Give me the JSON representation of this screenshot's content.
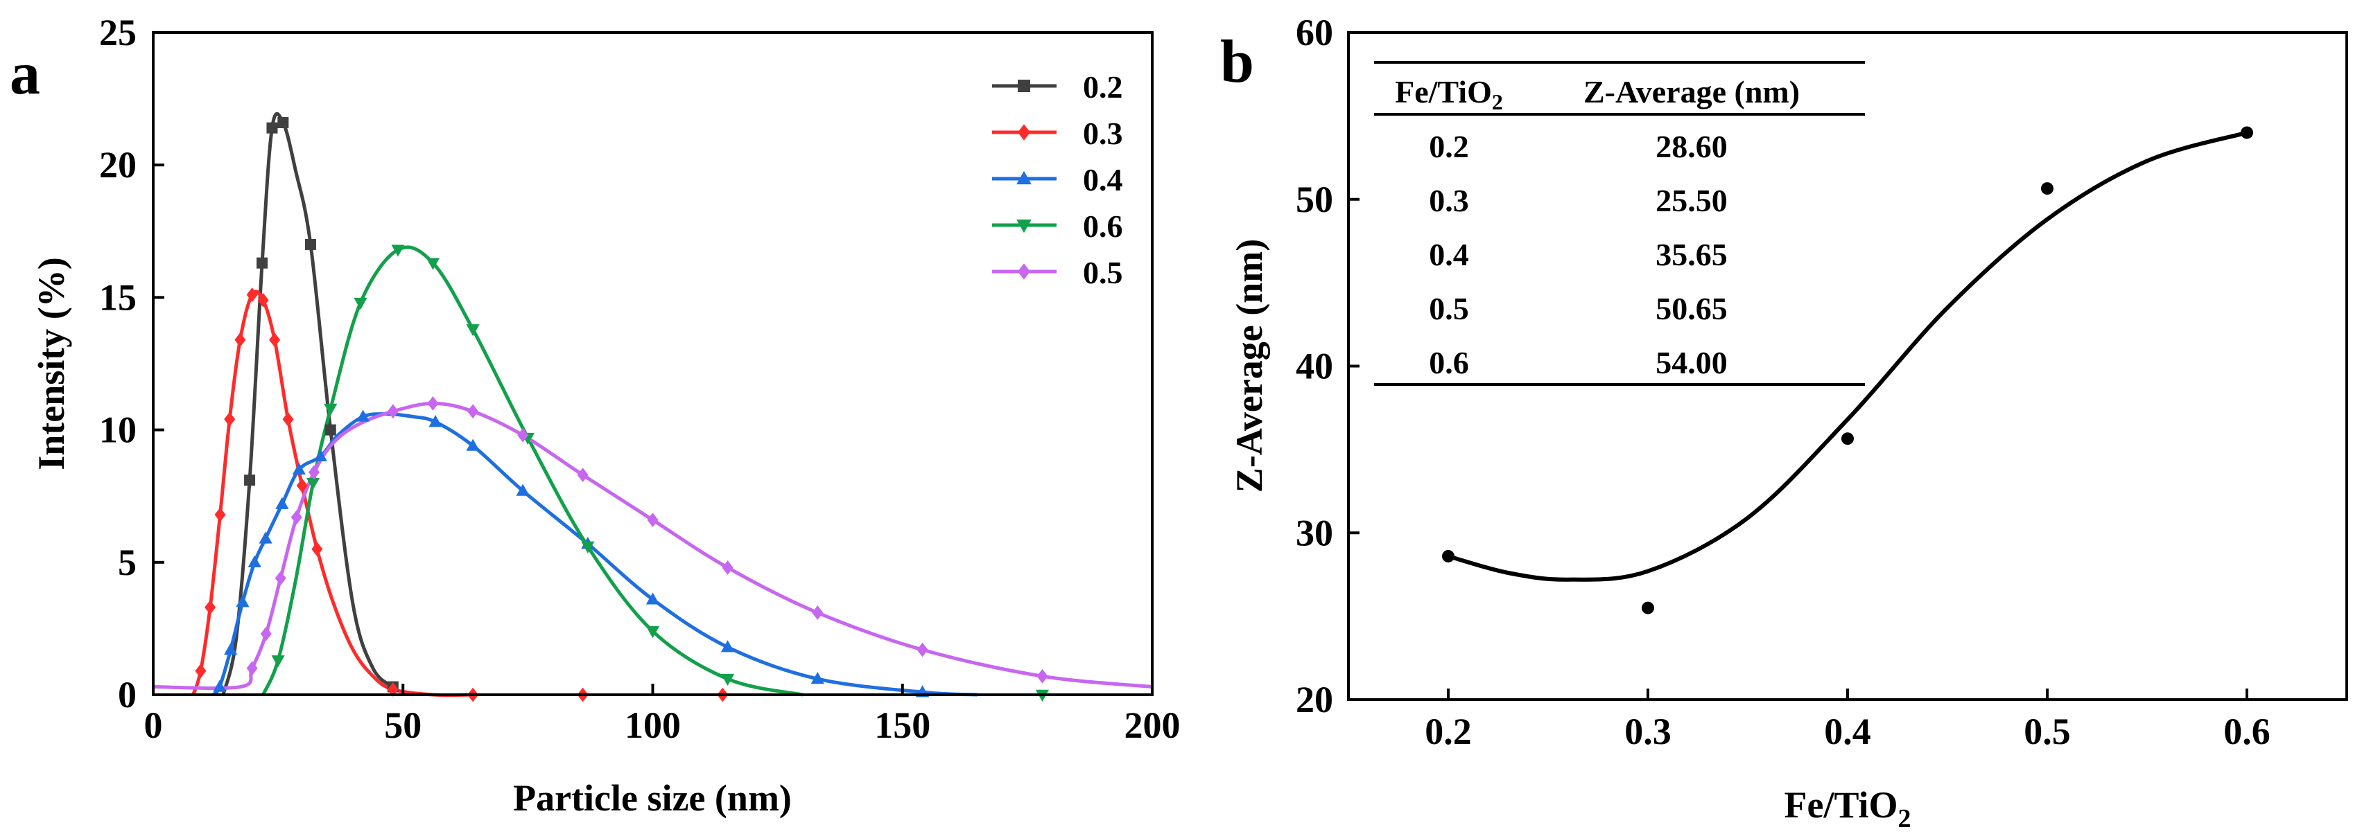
{
  "panel_a_letter": "a",
  "panel_b_letter": "b",
  "chart_data": [
    {
      "type": "line",
      "panel": "a",
      "title": "",
      "xlabel": "Particle size (nm)",
      "ylabel": "Intensity (%)",
      "xlim": [
        0,
        200
      ],
      "ylim": [
        0,
        25
      ],
      "x_ticks": [
        0,
        50,
        100,
        150,
        200
      ],
      "y_ticks": [
        0,
        5,
        10,
        15,
        20,
        25
      ],
      "grid": false,
      "legend_position": "top-right",
      "series": [
        {
          "name": "0.2",
          "color": "#404040",
          "marker": "square",
          "points": [
            [
              14,
              0
            ],
            [
              16.6,
              2.1
            ],
            [
              19.3,
              8.1
            ],
            [
              21.8,
              16.3
            ],
            [
              23.8,
              21.4
            ],
            [
              26,
              21.6
            ],
            [
              28.5,
              19.8
            ],
            [
              31.5,
              17.0
            ],
            [
              35.5,
              10.0
            ],
            [
              40,
              3.4
            ],
            [
              44,
              1.0
            ],
            [
              48,
              0.3
            ]
          ],
          "markers": [
            [
              19.3,
              8.1
            ],
            [
              21.8,
              16.3
            ],
            [
              23.8,
              21.4
            ],
            [
              26,
              21.6
            ],
            [
              31.5,
              17.0
            ],
            [
              35.5,
              10.0
            ],
            [
              48,
              0.3
            ]
          ]
        },
        {
          "name": "0.3",
          "color": "#ff2b2b",
          "marker": "diamond",
          "points": [
            [
              8,
              0
            ],
            [
              9.5,
              0.9
            ],
            [
              11.4,
              3.3
            ],
            [
              13.4,
              6.8
            ],
            [
              15.3,
              10.4
            ],
            [
              17.4,
              13.4
            ],
            [
              19.8,
              15.1
            ],
            [
              22,
              14.9
            ],
            [
              24.3,
              13.4
            ],
            [
              27,
              10.4
            ],
            [
              29.8,
              7.9
            ],
            [
              32.8,
              5.5
            ],
            [
              36,
              3.5
            ],
            [
              40,
              1.7
            ],
            [
              44,
              0.7
            ],
            [
              48,
              0.2
            ],
            [
              56,
              0
            ],
            [
              64,
              0
            ]
          ],
          "markers": [
            [
              9.5,
              0.9
            ],
            [
              11.4,
              3.3
            ],
            [
              13.4,
              6.8
            ],
            [
              15.3,
              10.4
            ],
            [
              17.4,
              13.4
            ],
            [
              19.8,
              15.1
            ],
            [
              22,
              14.9
            ],
            [
              24.3,
              13.4
            ],
            [
              27,
              10.4
            ],
            [
              29.8,
              7.9
            ],
            [
              32.8,
              5.5
            ],
            [
              48,
              0.2
            ],
            [
              64,
              0
            ],
            [
              86,
              0
            ],
            [
              114,
              0
            ]
          ]
        },
        {
          "name": "0.4",
          "color": "#1e6fe0",
          "marker": "triangle-up",
          "points": [
            [
              12,
              0
            ],
            [
              13.3,
              0.3
            ],
            [
              15.5,
              1.7
            ],
            [
              17.9,
              3.5
            ],
            [
              20.3,
              5.0
            ],
            [
              22.5,
              5.9
            ],
            [
              25.8,
              7.2
            ],
            [
              29.2,
              8.5
            ],
            [
              33.5,
              9.0
            ],
            [
              37,
              9.8
            ],
            [
              42,
              10.5
            ],
            [
              47,
              10.6
            ],
            [
              52,
              10.5
            ],
            [
              56.5,
              10.3
            ],
            [
              64,
              9.4
            ],
            [
              74,
              7.7
            ],
            [
              87,
              5.7
            ],
            [
              100,
              3.6
            ],
            [
              115,
              1.8
            ],
            [
              133,
              0.6
            ],
            [
              154,
              0.1
            ],
            [
              165,
              0
            ]
          ],
          "markers": [
            [
              13.3,
              0.3
            ],
            [
              15.5,
              1.7
            ],
            [
              17.9,
              3.5
            ],
            [
              20.3,
              5.0
            ],
            [
              22.5,
              5.9
            ],
            [
              25.8,
              7.2
            ],
            [
              29.2,
              8.5
            ],
            [
              33.5,
              9.0
            ],
            [
              42,
              10.5
            ],
            [
              56.5,
              10.3
            ],
            [
              64,
              9.4
            ],
            [
              74,
              7.7
            ],
            [
              87,
              5.7
            ],
            [
              100,
              3.6
            ],
            [
              115,
              1.8
            ],
            [
              133,
              0.6
            ],
            [
              154,
              0.1
            ]
          ]
        },
        {
          "name": "0.6",
          "color": "#12a04b",
          "marker": "triangle-down",
          "points": [
            [
              22,
              0
            ],
            [
              25,
              1.3
            ],
            [
              28.5,
              4.3
            ],
            [
              32,
              8.0
            ],
            [
              35.5,
              10.8
            ],
            [
              41.5,
              14.8
            ],
            [
              49,
              16.8
            ],
            [
              56,
              16.3
            ],
            [
              64,
              13.8
            ],
            [
              75,
              9.7
            ],
            [
              87,
              5.6
            ],
            [
              100,
              2.4
            ],
            [
              115,
              0.6
            ],
            [
              130,
              0
            ]
          ],
          "markers": [
            [
              25,
              1.3
            ],
            [
              32,
              8.0
            ],
            [
              35.5,
              10.8
            ],
            [
              41.5,
              14.8
            ],
            [
              49,
              16.8
            ],
            [
              56,
              16.3
            ],
            [
              64,
              13.8
            ],
            [
              75,
              9.7
            ],
            [
              87,
              5.6
            ],
            [
              100,
              2.4
            ],
            [
              115,
              0.6
            ],
            [
              178,
              0
            ]
          ]
        },
        {
          "name": "0.5",
          "color": "#c766f0",
          "marker": "diamond",
          "points": [
            [
              0,
              0.3
            ],
            [
              17.5,
              0.3
            ],
            [
              19.8,
              1.0
            ],
            [
              22.6,
              2.3
            ],
            [
              25.5,
              4.4
            ],
            [
              28.7,
              6.7
            ],
            [
              32.2,
              8.4
            ],
            [
              36,
              9.5
            ],
            [
              41,
              10.2
            ],
            [
              48,
              10.7
            ],
            [
              56,
              11.0
            ],
            [
              64,
              10.7
            ],
            [
              74,
              9.8
            ],
            [
              86,
              8.3
            ],
            [
              100,
              6.6
            ],
            [
              115,
              4.8
            ],
            [
              133,
              3.1
            ],
            [
              154,
              1.7
            ],
            [
              178,
              0.7
            ],
            [
              200,
              0.3
            ]
          ],
          "markers": [
            [
              19.8,
              1.0
            ],
            [
              22.6,
              2.3
            ],
            [
              25.5,
              4.4
            ],
            [
              28.7,
              6.7
            ],
            [
              32.2,
              8.4
            ],
            [
              48,
              10.7
            ],
            [
              56,
              11.0
            ],
            [
              64,
              10.7
            ],
            [
              74,
              9.8
            ],
            [
              86,
              8.3
            ],
            [
              100,
              6.6
            ],
            [
              115,
              4.8
            ],
            [
              133,
              3.1
            ],
            [
              154,
              1.7
            ],
            [
              178,
              0.7
            ]
          ]
        }
      ]
    },
    {
      "type": "scatter",
      "panel": "b",
      "title": "",
      "xlabel": "Fe/TiO2",
      "ylabel": "Z-Average (nm)",
      "xlim": [
        0.15,
        0.65
      ],
      "ylim": [
        20,
        60
      ],
      "x_ticks": [
        "0.2",
        "0.3",
        "0.4",
        "0.5",
        "0.6"
      ],
      "y_ticks": [
        "20",
        "30",
        "40",
        "50",
        "60"
      ],
      "grid": false,
      "x": [
        0.2,
        0.3,
        0.4,
        0.5,
        0.6
      ],
      "y": [
        28.6,
        25.5,
        35.65,
        50.65,
        54.0
      ],
      "fit_curve": [
        [
          0.2,
          28.6
        ],
        [
          0.23,
          27.6
        ],
        [
          0.26,
          27.2
        ],
        [
          0.3,
          27.7
        ],
        [
          0.35,
          30.9
        ],
        [
          0.4,
          36.8
        ],
        [
          0.45,
          43.5
        ],
        [
          0.5,
          48.8
        ],
        [
          0.55,
          52.3
        ],
        [
          0.6,
          54.0
        ]
      ],
      "inset_table": {
        "headers": [
          "Fe/TiO2",
          "Z-Average (nm)"
        ],
        "rows": [
          [
            "0.2",
            "28.60"
          ],
          [
            "0.3",
            "25.50"
          ],
          [
            "0.4",
            "35.65"
          ],
          [
            "0.5",
            "50.65"
          ],
          [
            "0.6",
            "54.00"
          ]
        ]
      }
    }
  ]
}
